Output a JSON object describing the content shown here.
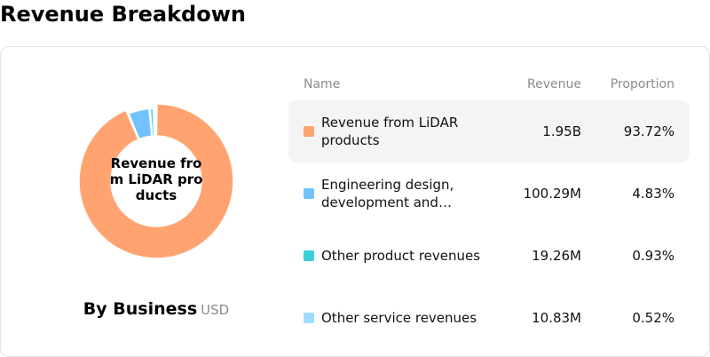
{
  "title": "Revenue Breakdown",
  "card": {
    "center_label": "Revenue from LiDAR products",
    "caption": "By Business",
    "unit": "USD"
  },
  "table": {
    "headers": {
      "name": "Name",
      "revenue": "Revenue",
      "proportion": "Proportion"
    }
  },
  "chart_data": {
    "type": "pie",
    "title": "",
    "categories": [
      "Revenue from LiDAR products",
      "Engineering design, development and…",
      "Other product revenues",
      "Other service revenues"
    ],
    "values_label": [
      "1.95B",
      "100.29M",
      "19.26M",
      "10.83M"
    ],
    "proportions": [
      93.72,
      4.83,
      0.93,
      0.52
    ],
    "proportions_label": [
      "93.72%",
      "4.83%",
      "0.93%",
      "0.52%"
    ],
    "colors": [
      "#ffa470",
      "#72c2ff",
      "#3bcfd9",
      "#9ddcff"
    ],
    "highlighted_index": 0
  }
}
